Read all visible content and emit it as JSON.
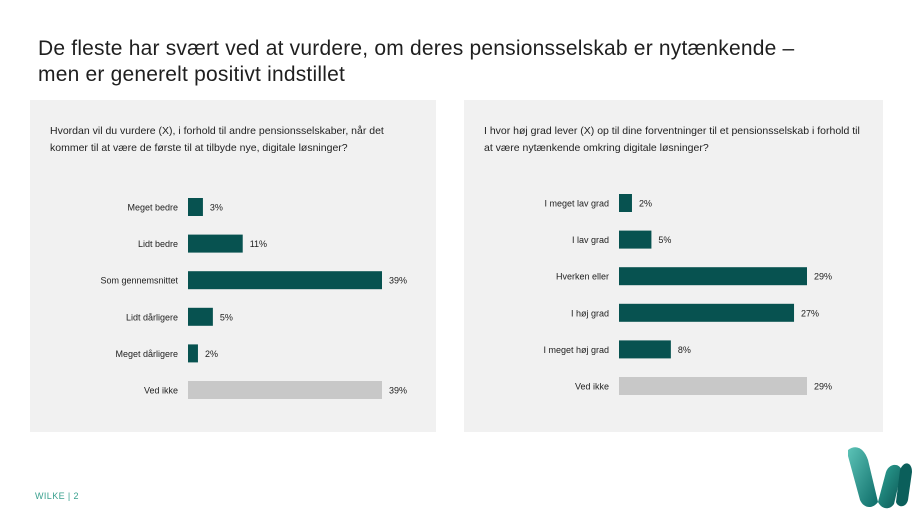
{
  "title": {
    "line1": "De fleste har svært ved at vurdere, om deres pensionsselskab er nytænkende –",
    "line2": "men er generelt positivt indstillet"
  },
  "footer": {
    "label": "WILKE | 2"
  },
  "colors": {
    "primary": "#075250",
    "neutral": "#c8c8c8",
    "accent": "#1a8f82"
  },
  "chart_data": [
    {
      "type": "bar",
      "orientation": "horizontal",
      "question": "Hvordan vil du vurdere (X), i forhold til andre pensionsselskaber, når det kommer til at være de første til at tilbyde nye, digitale løsninger?",
      "categories": [
        "Meget bedre",
        "Lidt bedre",
        "Som gennemsnittet",
        "Lidt dårligere",
        "Meget dårligere",
        "Ved ikke"
      ],
      "values": [
        3,
        11,
        39,
        5,
        2,
        39
      ],
      "labels": [
        "3%",
        "11%",
        "39%",
        "5%",
        "2%",
        "39%"
      ],
      "highlight": [
        true,
        true,
        true,
        true,
        true,
        false
      ],
      "xlim": [
        0,
        39
      ]
    },
    {
      "type": "bar",
      "orientation": "horizontal",
      "question": "I hvor høj grad lever (X) op til dine forventninger til et pensionsselskab i forhold til at være nytænkende omkring digitale løsninger?",
      "categories": [
        "I meget lav grad",
        "I lav grad",
        "Hverken eller",
        "I høj grad",
        "I meget høj grad",
        "Ved ikke"
      ],
      "values": [
        2,
        5,
        29,
        27,
        8,
        29
      ],
      "labels": [
        "2%",
        "5%",
        "29%",
        "27%",
        "8%",
        "29%"
      ],
      "highlight": [
        true,
        true,
        true,
        true,
        true,
        false
      ],
      "xlim": [
        0,
        29
      ]
    }
  ]
}
